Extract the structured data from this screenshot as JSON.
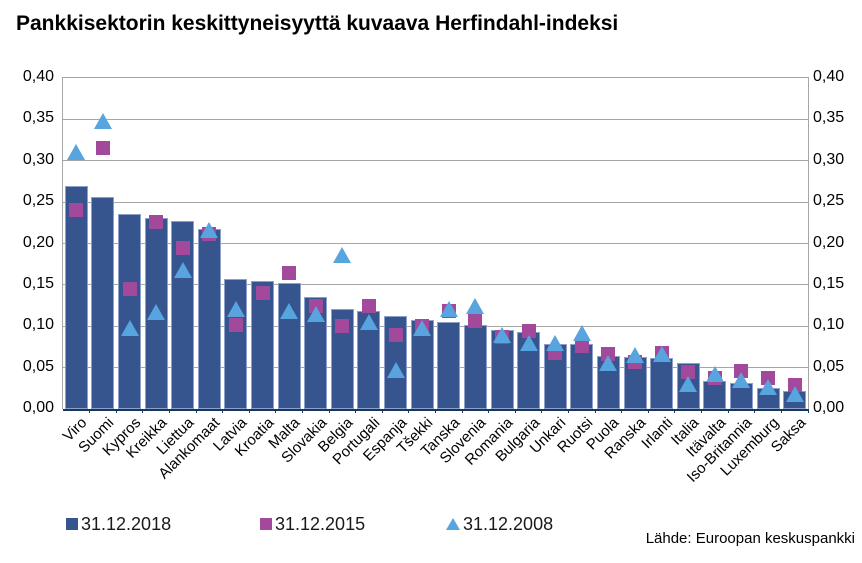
{
  "title": "Pankkisektorin keskittyneisyyttä kuvaava Herfindahl-indeksi",
  "source": "Lähde: Euroopan keskuspankki",
  "colors": {
    "bar_2018": "#36558f",
    "bar_border": "#8e9fc9",
    "marker_2015": "#a2499c",
    "marker_2008": "#57a4de",
    "gridline": "#a6a6a6",
    "axis_line": "#17375e",
    "text": "#000000"
  },
  "legend": [
    {
      "label": "31.12.2018",
      "marker": "square-dark"
    },
    {
      "label": "31.12.2015",
      "marker": "square-magenta"
    },
    {
      "label": "31.12.2008",
      "marker": "triangle-blue"
    }
  ],
  "chart_data": {
    "type": "bar",
    "title": "Pankkisektorin keskittyneisyyttä kuvaava Herfindahl-indeksi",
    "xlabel": "",
    "ylabel": "",
    "ylim": [
      0,
      0.4
    ],
    "ytick_step": 0.05,
    "ytick_labels": [
      "0,00",
      "0,05",
      "0,10",
      "0,15",
      "0,20",
      "0,25",
      "0,30",
      "0,35",
      "0,40"
    ],
    "grid": "horizontal",
    "legend_position": "bottom",
    "y_axis_sides": "both",
    "categories": [
      "Viro",
      "Suomi",
      "Kypros",
      "Kreikka",
      "Liettua",
      "Alankomaat",
      "Latvia",
      "Kroatia",
      "Malta",
      "Slovakia",
      "Belgia",
      "Portugali",
      "Espanja",
      "Tšekki",
      "Tanska",
      "Slovenia",
      "Romania",
      "Bulgaria",
      "Unkari",
      "Ruotsi",
      "Puola",
      "Ranska",
      "Irlanti",
      "Italia",
      "Itävalta",
      "Iso-Britannia",
      "Luxemburg",
      "Saksa"
    ],
    "series": [
      {
        "name": "31.12.2018",
        "type": "bar",
        "color": "#36558f",
        "values": [
          0.27,
          0.256,
          0.236,
          0.231,
          0.227,
          0.218,
          0.157,
          0.155,
          0.152,
          0.135,
          0.121,
          0.118,
          0.112,
          0.107,
          0.105,
          0.101,
          0.095,
          0.093,
          0.079,
          0.078,
          0.064,
          0.063,
          0.062,
          0.056,
          0.034,
          0.032,
          0.025,
          0.022
        ]
      },
      {
        "name": "31.12.2015",
        "type": "square-marker",
        "color": "#a2499c",
        "values": [
          0.241,
          0.315,
          0.145,
          0.226,
          0.195,
          0.211,
          0.102,
          0.14,
          0.164,
          0.125,
          0.1,
          0.124,
          0.089,
          0.1,
          0.118,
          0.106,
          0.087,
          0.094,
          0.068,
          0.076,
          0.066,
          0.057,
          0.068,
          0.045,
          0.038,
          0.046,
          0.038,
          0.029
        ]
      },
      {
        "name": "31.12.2008",
        "type": "triangle-marker",
        "color": "#57a4de",
        "values": [
          0.31,
          0.348,
          0.098,
          0.117,
          0.168,
          0.216,
          0.121,
          null,
          0.119,
          0.115,
          0.186,
          0.105,
          0.047,
          0.098,
          0.121,
          0.124,
          0.09,
          0.08,
          0.08,
          0.092,
          0.055,
          0.065,
          0.066,
          0.03,
          0.042,
          0.035,
          0.027,
          0.018
        ]
      }
    ]
  }
}
